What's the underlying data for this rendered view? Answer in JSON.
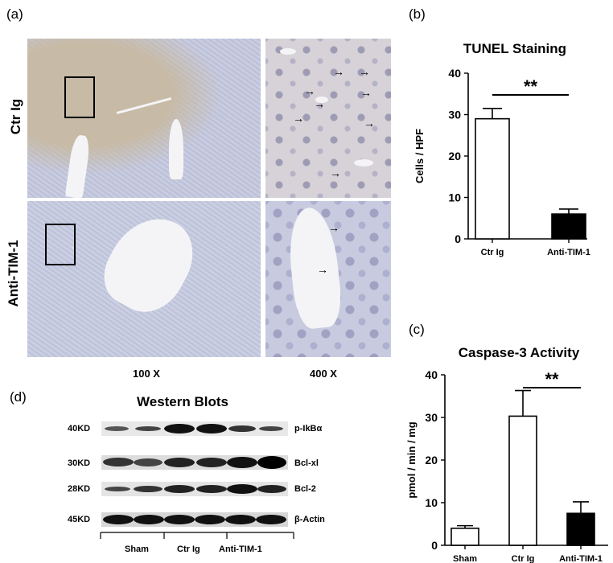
{
  "panel_a": {
    "letter": "(a)",
    "row_labels": [
      "Ctr Ig",
      "Anti-TIM-1"
    ],
    "magnifications": [
      "100 X",
      "400 X"
    ]
  },
  "panel_b": {
    "letter": "(b)"
  },
  "panel_c": {
    "letter": "(c)"
  },
  "panel_d": {
    "letter": "(d)",
    "title": "Western Blots",
    "rows": [
      {
        "kd": "40KD",
        "protein": "p-IkBα"
      },
      {
        "kd": "30KD",
        "protein": "Bcl-xl"
      },
      {
        "kd": "28KD",
        "protein": "Bcl-2"
      },
      {
        "kd": "45KD",
        "protein": "β-Actin"
      }
    ],
    "groups": [
      "Sham",
      "Ctr Ig",
      "Anti-TIM-1"
    ]
  },
  "chart_data": [
    {
      "type": "bar",
      "title": "TUNEL Staining",
      "ylabel": "Cells / HPF",
      "categories": [
        "Ctr Ig",
        "Anti-TIM-1"
      ],
      "values": [
        29,
        6
      ],
      "errors": [
        2.5,
        1.2
      ],
      "fills": [
        "#ffffff",
        "#000000"
      ],
      "ylim": [
        0,
        40
      ],
      "yticks": [
        0,
        10,
        20,
        30,
        40
      ],
      "significance": "**"
    },
    {
      "type": "bar",
      "title": "Caspase-3 Activity",
      "ylabel": "pmol / min / mg",
      "categories": [
        "Sham",
        "Ctr Ig",
        "Anti-TIM-1"
      ],
      "values": [
        4,
        30.3,
        7.5
      ],
      "errors": [
        0.6,
        6,
        2.7
      ],
      "fills": [
        "#ffffff",
        "#ffffff",
        "#000000"
      ],
      "ylim": [
        0,
        40
      ],
      "yticks": [
        0,
        10,
        20,
        30,
        40
      ],
      "significance": "**"
    }
  ]
}
